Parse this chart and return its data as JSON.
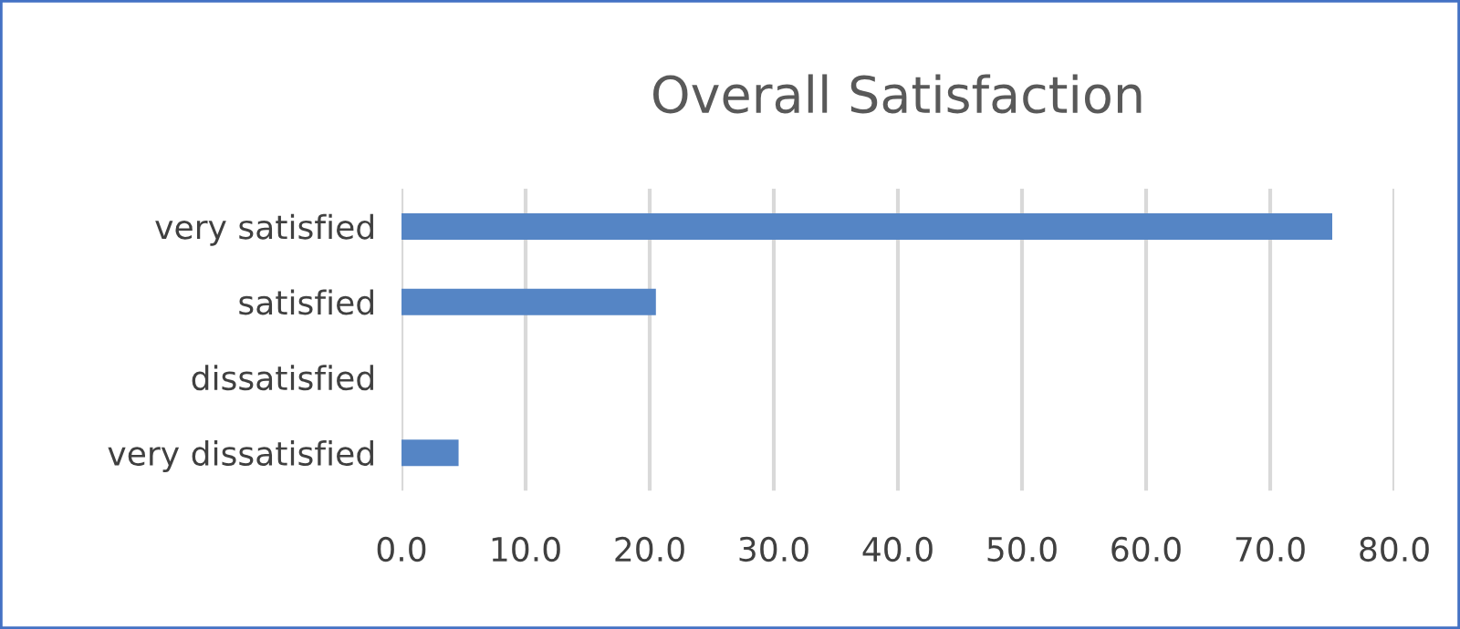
{
  "chart_data": {
    "type": "bar",
    "orientation": "horizontal",
    "title": "Overall Satisfaction",
    "categories": [
      "very satisfied",
      "satisfied",
      "dissatisfied",
      "very dissatisfied"
    ],
    "values": [
      75.0,
      20.5,
      0,
      4.6
    ],
    "color": "#5585c5",
    "xlim": [
      0,
      80
    ],
    "xticks": [
      {
        "value": 0,
        "label": "0.0"
      },
      {
        "value": 10,
        "label": "10.0"
      },
      {
        "value": 20,
        "label": "20.0"
      },
      {
        "value": 30,
        "label": "30.0"
      },
      {
        "value": 40,
        "label": "40.0"
      },
      {
        "value": 50,
        "label": "50.0"
      },
      {
        "value": 60,
        "label": "60.0"
      },
      {
        "value": 70,
        "label": "70.0"
      },
      {
        "value": 80,
        "label": "80.0"
      }
    ],
    "grid": "x"
  }
}
